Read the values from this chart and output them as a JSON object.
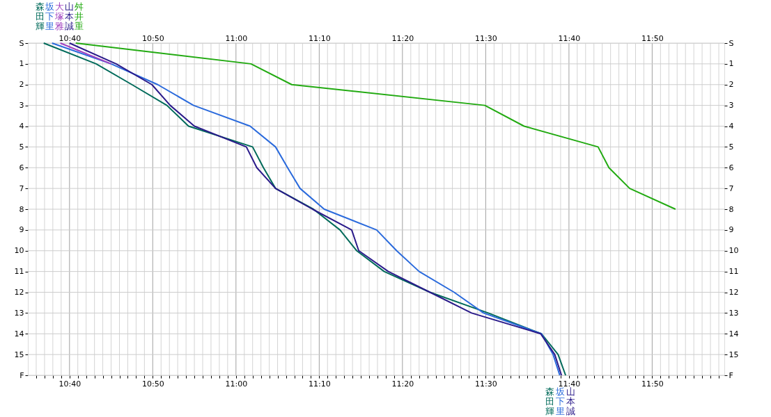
{
  "chart_data": {
    "type": "line",
    "grid": true,
    "xlim": [
      10.5833,
      11.9778
    ],
    "ylim": [
      16,
      0
    ],
    "y2lim": [
      16,
      0
    ],
    "x2lim": [
      10.5833,
      11.9778
    ],
    "xticks": [
      {
        "value": 10.6,
        "label": null
      },
      {
        "value": 10.6167,
        "label": null
      },
      {
        "value": 10.6333,
        "label": null
      },
      {
        "value": 10.65,
        "label": null
      },
      {
        "value": 10.6667,
        "label": "10:40"
      },
      {
        "value": 10.6833,
        "label": null
      },
      {
        "value": 10.7,
        "label": null
      },
      {
        "value": 10.7167,
        "label": null
      },
      {
        "value": 10.7333,
        "label": null
      },
      {
        "value": 10.75,
        "label": null
      },
      {
        "value": 10.7667,
        "label": null
      },
      {
        "value": 10.7833,
        "label": null
      },
      {
        "value": 10.8,
        "label": null
      },
      {
        "value": 10.8167,
        "label": null
      },
      {
        "value": 10.8333,
        "label": "10:50"
      },
      {
        "value": 10.85,
        "label": null
      },
      {
        "value": 10.8667,
        "label": null
      },
      {
        "value": 10.8833,
        "label": null
      },
      {
        "value": 10.9,
        "label": null
      },
      {
        "value": 10.9167,
        "label": null
      },
      {
        "value": 10.9333,
        "label": null
      },
      {
        "value": 10.95,
        "label": null
      },
      {
        "value": 10.9667,
        "label": null
      },
      {
        "value": 10.9833,
        "label": null
      },
      {
        "value": 11,
        "label": "11:00"
      },
      {
        "value": 11.0167,
        "label": null
      },
      {
        "value": 11.0333,
        "label": null
      },
      {
        "value": 11.05,
        "label": null
      },
      {
        "value": 11.0667,
        "label": null
      },
      {
        "value": 11.0833,
        "label": null
      },
      {
        "value": 11.1,
        "label": null
      },
      {
        "value": 11.1167,
        "label": null
      },
      {
        "value": 11.1333,
        "label": null
      },
      {
        "value": 11.15,
        "label": null
      },
      {
        "value": 11.1667,
        "label": "11:10"
      },
      {
        "value": 11.1833,
        "label": null
      },
      {
        "value": 11.2,
        "label": null
      },
      {
        "value": 11.2167,
        "label": null
      },
      {
        "value": 11.2333,
        "label": null
      },
      {
        "value": 11.25,
        "label": null
      },
      {
        "value": 11.2667,
        "label": null
      },
      {
        "value": 11.2833,
        "label": null
      },
      {
        "value": 11.3,
        "label": null
      },
      {
        "value": 11.3167,
        "label": null
      },
      {
        "value": 11.3333,
        "label": "11:20"
      },
      {
        "value": 11.35,
        "label": null
      },
      {
        "value": 11.3667,
        "label": null
      },
      {
        "value": 11.3833,
        "label": null
      },
      {
        "value": 11.4,
        "label": null
      },
      {
        "value": 11.4167,
        "label": null
      },
      {
        "value": 11.4333,
        "label": null
      },
      {
        "value": 11.45,
        "label": null
      },
      {
        "value": 11.4667,
        "label": null
      },
      {
        "value": 11.4833,
        "label": null
      },
      {
        "value": 11.5,
        "label": "11:30"
      },
      {
        "value": 11.5167,
        "label": null
      },
      {
        "value": 11.5333,
        "label": null
      },
      {
        "value": 11.55,
        "label": null
      },
      {
        "value": 11.5667,
        "label": null
      },
      {
        "value": 11.5833,
        "label": null
      },
      {
        "value": 11.6,
        "label": null
      },
      {
        "value": 11.6167,
        "label": null
      },
      {
        "value": 11.6333,
        "label": null
      },
      {
        "value": 11.65,
        "label": null
      },
      {
        "value": 11.6667,
        "label": "11:40"
      },
      {
        "value": 11.6833,
        "label": null
      },
      {
        "value": 11.7,
        "label": null
      },
      {
        "value": 11.7167,
        "label": null
      },
      {
        "value": 11.7333,
        "label": null
      },
      {
        "value": 11.75,
        "label": null
      },
      {
        "value": 11.7667,
        "label": null
      },
      {
        "value": 11.7833,
        "label": null
      },
      {
        "value": 11.8,
        "label": null
      },
      {
        "value": 11.8167,
        "label": null
      },
      {
        "value": 11.8333,
        "label": "11:50"
      },
      {
        "value": 11.85,
        "label": null
      },
      {
        "value": 11.8667,
        "label": null
      },
      {
        "value": 11.8833,
        "label": null
      },
      {
        "value": 11.9,
        "label": null
      },
      {
        "value": 11.9167,
        "label": null
      },
      {
        "value": 11.9333,
        "label": null
      },
      {
        "value": 11.95,
        "label": null
      },
      {
        "value": 11.9667,
        "label": null
      }
    ],
    "x2ticks": [
      {
        "value": 10.6667,
        "label": "10:40"
      },
      {
        "value": 10.8333,
        "label": "10:50"
      },
      {
        "value": 11,
        "label": "11:00"
      },
      {
        "value": 11.1667,
        "label": "11:10"
      },
      {
        "value": 11.3333,
        "label": "11:20"
      },
      {
        "value": 11.5,
        "label": "11:30"
      },
      {
        "value": 11.6667,
        "label": "11:40"
      },
      {
        "value": 11.8333,
        "label": "11:50"
      }
    ],
    "yticks": [
      {
        "value": 0,
        "label": "S"
      },
      1,
      2,
      3,
      4,
      5,
      6,
      7,
      8,
      9,
      10,
      11,
      12,
      13,
      14,
      15,
      {
        "value": 16,
        "label": "F"
      }
    ],
    "y2ticks": [
      {
        "value": 0,
        "label": "S"
      },
      1,
      2,
      3,
      4,
      5,
      6,
      7,
      8,
      9,
      10,
      11,
      12,
      13,
      14,
      15,
      {
        "value": 16,
        "label": "F"
      }
    ],
    "series": [
      {
        "name": "森田輝",
        "color": "#006a5a",
        "x": [
          10.615,
          10.72,
          10.7917,
          10.8617,
          10.905,
          11.0333,
          11.055,
          11.0792,
          11.155,
          11.2083,
          11.2417,
          11.2967,
          11.3883,
          11.505,
          11.6117,
          11.645,
          11.66
        ],
        "values": [
          0,
          1,
          2,
          3,
          4,
          5,
          6,
          7,
          8,
          9,
          10,
          11,
          12,
          13,
          14,
          15,
          16
        ]
      },
      {
        "name": "坂下里",
        "color": "#2a6adc",
        "x": [
          10.6317,
          10.75,
          10.8433,
          10.915,
          11.0283,
          11.0792,
          11.1033,
          11.1283,
          11.1767,
          11.2817,
          11.3217,
          11.3667,
          11.4367,
          11.4958,
          11.6117,
          11.635,
          11.6483
        ],
        "values": [
          0,
          1,
          2,
          3,
          4,
          5,
          6,
          7,
          8,
          9,
          10,
          11,
          12,
          13,
          14,
          15,
          16
        ]
      },
      {
        "name": "大塚雅",
        "color": "#a040c0",
        "x": [
          10.6483,
          10.75
        ],
        "values": [
          0,
          1
        ]
      },
      {
        "name": "山本誠",
        "color": "#2a1a8a",
        "x": [
          10.6667,
          10.76,
          10.8317,
          10.8683,
          10.9167,
          11.0208,
          11.0417,
          11.0792,
          11.1533,
          11.2317,
          11.2458,
          11.305,
          11.3883,
          11.4717,
          11.61,
          11.6383,
          11.6517
        ],
        "values": [
          0,
          1,
          2,
          3,
          4,
          5,
          6,
          7,
          8,
          9,
          10,
          11,
          12,
          13,
          14,
          15,
          16
        ]
      },
      {
        "name": "舛井重",
        "color": "#22aa11",
        "x": [
          10.6792,
          11.03,
          11.1117,
          11.4983,
          11.5767,
          11.725,
          11.7467,
          11.7883,
          11.88
        ],
        "values": [
          0,
          1,
          2,
          3,
          4,
          5,
          6,
          7,
          8
        ]
      }
    ]
  }
}
